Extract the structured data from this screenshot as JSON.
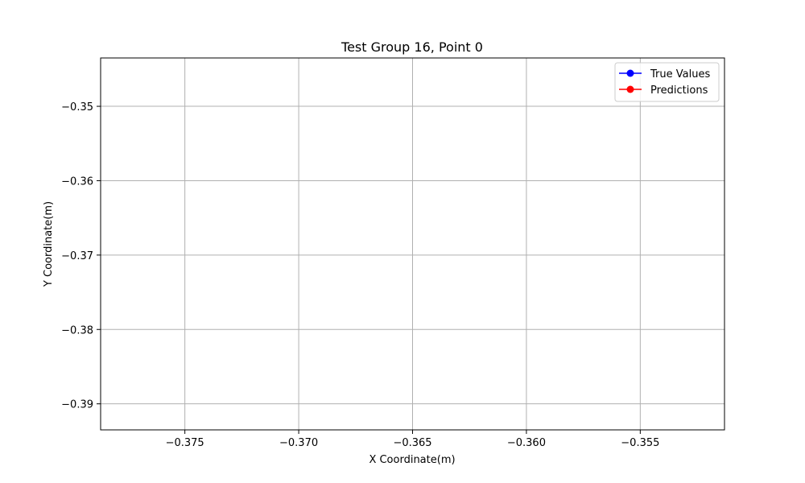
{
  "chart_data": {
    "type": "line",
    "title": "Test Group 16, Point 0",
    "xlabel": "X Coordinate(m)",
    "ylabel": "Y Coordinate(m)",
    "xlim": [
      -0.3787,
      -0.3513
    ],
    "ylim": [
      -0.3935,
      -0.3435
    ],
    "xticks": [
      -0.375,
      -0.37,
      -0.365,
      -0.36,
      -0.355
    ],
    "xtick_labels": [
      "−0.375",
      "−0.370",
      "−0.365",
      "−0.360",
      "−0.355"
    ],
    "yticks": [
      -0.35,
      -0.36,
      -0.37,
      -0.38,
      -0.39
    ],
    "ytick_labels": [
      "−0.35",
      "−0.36",
      "−0.37",
      "−0.38",
      "−0.39"
    ],
    "grid": true,
    "legend_position": "top-right",
    "series": [
      {
        "name": "True Values",
        "color": "#0000ff",
        "marker": "circle",
        "x": [],
        "y": []
      },
      {
        "name": "Predictions",
        "color": "#ff0000",
        "marker": "circle",
        "x": [],
        "y": []
      }
    ]
  }
}
